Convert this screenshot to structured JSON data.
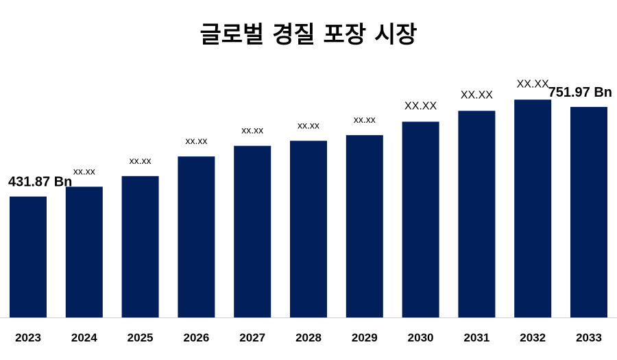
{
  "chart_data": {
    "type": "bar",
    "title": "글로벌 경질 포장 시장",
    "categories": [
      "2023",
      "2024",
      "2025",
      "2026",
      "2027",
      "2028",
      "2029",
      "2030",
      "2031",
      "2032",
      "2033"
    ],
    "values": [
      431.87,
      467,
      505,
      575,
      613,
      631,
      651,
      699,
      738,
      778,
      751.97
    ],
    "data_labels": [
      "431.87 Bn",
      "xx.xx",
      "xx.xx",
      "xx.xx",
      "xx.xx",
      "xx.xx",
      "xx.xx",
      "XX.XX",
      "XX.XX",
      "XX.XX",
      "751.97 Bn"
    ],
    "bar_color": "#001f5b",
    "ylim": [
      0,
      900
    ],
    "grid": false,
    "legend": "none"
  }
}
